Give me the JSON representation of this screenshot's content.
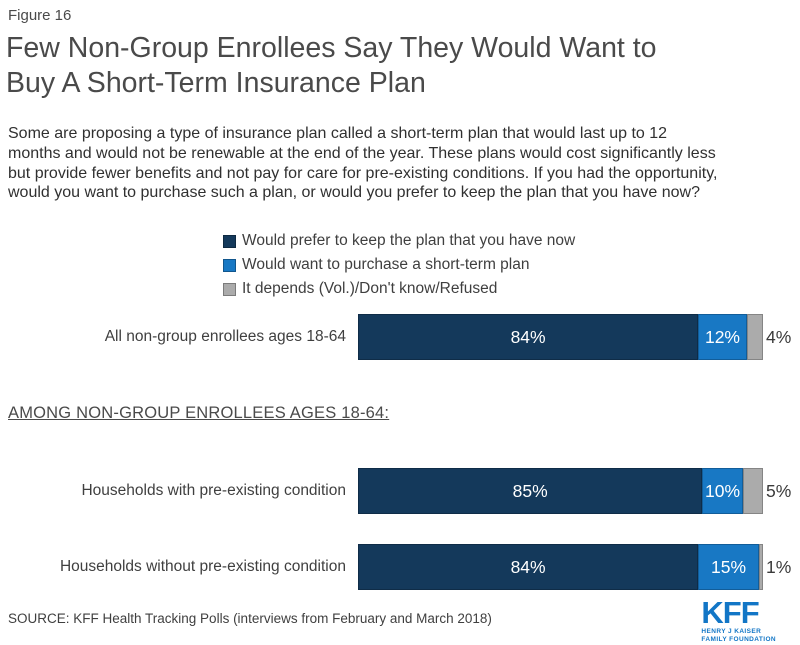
{
  "figure_label": "Figure 16",
  "title": "Few Non-Group Enrollees Say They Would Want to Buy A Short-Term Insurance Plan",
  "description": "Some are proposing a type of insurance plan called a short-term plan that would last up to 12 months and would not be renewable at the end of the year. These plans would cost significantly less but provide fewer benefits and not pay for care for pre-existing conditions. If you had the opportunity, would you want to purchase such a plan, or would you prefer to keep the plan that you have now?",
  "legend": [
    {
      "label": "Would prefer to keep the plan that you have now",
      "color": "#14395B"
    },
    {
      "label": "Would want to purchase a short-term plan",
      "color": "#1878C4"
    },
    {
      "label": "It depends (Vol.)/Don't know/Refused",
      "color": "#ABABAB"
    }
  ],
  "section_header": "AMONG NON-GROUP ENROLLEES AGES 18-64:",
  "source": "SOURCE: KFF Health Tracking Polls (interviews from February and March 2018)",
  "logo": {
    "text": "KFF",
    "line1": "HENRY J KAISER",
    "line2": "FAMILY FOUNDATION",
    "color": "#1276C6"
  },
  "chart_data": {
    "type": "bar",
    "orientation": "horizontal",
    "stacked": true,
    "xlim": [
      0,
      100
    ],
    "value_suffix": "%",
    "grid": false,
    "legend_position": "top",
    "categories": [
      "All non-group enrollees ages 18-64",
      "Households with pre-existing condition",
      "Households without pre-existing condition"
    ],
    "series": [
      {
        "name": "Would prefer to keep the plan that you have now",
        "color": "#14395B",
        "values": [
          84,
          85,
          84
        ]
      },
      {
        "name": "Would want to purchase a short-term plan",
        "color": "#1878C4",
        "values": [
          12,
          10,
          15
        ]
      },
      {
        "name": "It depends (Vol.)/Don't know/Refused",
        "color": "#ABABAB",
        "values": [
          4,
          5,
          1
        ]
      }
    ]
  }
}
